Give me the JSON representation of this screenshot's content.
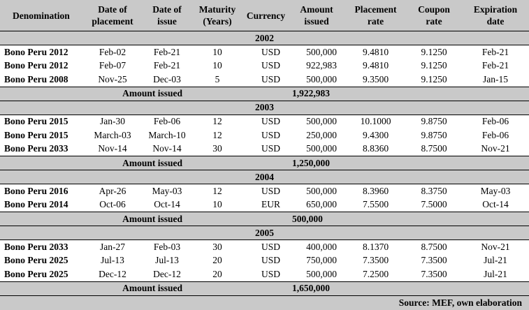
{
  "headers": [
    {
      "line1": "Denomination",
      "line2": ""
    },
    {
      "line1": "Date of",
      "line2": "placement"
    },
    {
      "line1": "Date of",
      "line2": "issue"
    },
    {
      "line1": "Maturity",
      "line2": "(Years)"
    },
    {
      "line1": "Currency",
      "line2": ""
    },
    {
      "line1": "Amount",
      "line2": "issued"
    },
    {
      "line1": "Placement",
      "line2": "rate"
    },
    {
      "line1": "Coupon",
      "line2": "rate"
    },
    {
      "line1": "Expiration",
      "line2": "date"
    }
  ],
  "groups": [
    {
      "year": "2002",
      "rows": [
        [
          "Bono Peru 2012",
          "Feb-02",
          "Feb-21",
          "10",
          "USD",
          "500,000",
          "9.4810",
          "9.1250",
          "Feb-21"
        ],
        [
          "Bono Peru 2012",
          "Feb-07",
          "Feb-21",
          "10",
          "USD",
          "922,983",
          "9.4810",
          "9.1250",
          "Feb-21"
        ],
        [
          "Bono Peru 2008",
          "Nov-25",
          "Dec-03",
          "5",
          "USD",
          "500,000",
          "9.3500",
          "9.1250",
          "Jan-15"
        ]
      ],
      "total_label": "Amount issued",
      "total": "1,922,983"
    },
    {
      "year": "2003",
      "rows": [
        [
          "Bono Peru 2015",
          "Jan-30",
          "Feb-06",
          "12",
          "USD",
          "500,000",
          "10.1000",
          "9.8750",
          "Feb-06"
        ],
        [
          "Bono Peru 2015",
          "March-03",
          "March-10",
          "12",
          "USD",
          "250,000",
          "9.4300",
          "9.8750",
          "Feb-06"
        ],
        [
          "Bono Peru 2033",
          "Nov-14",
          "Nov-14",
          "30",
          "USD",
          "500,000",
          "8.8360",
          "8.7500",
          "Nov-21"
        ]
      ],
      "total_label": "Amount issued",
      "total": "1,250,000"
    },
    {
      "year": "2004",
      "rows": [
        [
          "Bono Peru 2016",
          "Apr-26",
          "May-03",
          "12",
          "USD",
          "500,000",
          "8.3960",
          "8.3750",
          "May-03"
        ],
        [
          "Bono Peru 2014",
          "Oct-06",
          "Oct-14",
          "10",
          "EUR",
          "650,000",
          "7.5500",
          "7.5000",
          "Oct-14"
        ]
      ],
      "total_label": "Amount issued",
      "total": "500,000"
    },
    {
      "year": "2005",
      "rows": [
        [
          "Bono Peru 2033",
          "Jan-27",
          "Feb-03",
          "30",
          "USD",
          "400,000",
          "8.1370",
          "8.7500",
          "Nov-21"
        ],
        [
          "Bono Peru 2025",
          "Jul-13",
          "Jul-13",
          "20",
          "USD",
          "750,000",
          "7.3500",
          "7.3500",
          "Jul-21"
        ],
        [
          "Bono Peru 2025",
          "Dec-12",
          "Dec-12",
          "20",
          "USD",
          "500,000",
          "7.2500",
          "7.3500",
          "Jul-21"
        ]
      ],
      "total_label": "Amount issued",
      "total": "1,650,000"
    }
  ],
  "source": "Source: MEF, own elaboration"
}
